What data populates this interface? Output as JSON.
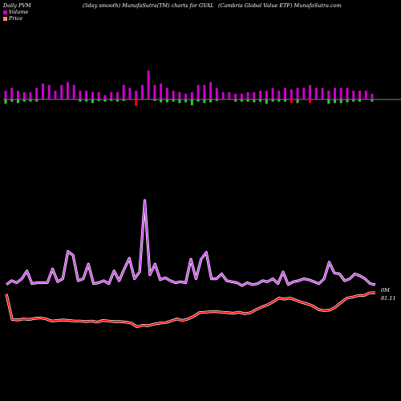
{
  "header": {
    "left": "Daily PVM",
    "mid": "(5day smooth) MunafaSutra(TM) charts for GVAL",
    "right": "(Cambria  Global Value   ETF) MunafaSutra.com"
  },
  "legend": [
    {
      "label": "Volume",
      "color": "#cc00cc"
    },
    {
      "label": "Price",
      "color": "#ff8c69"
    }
  ],
  "end_labels": {
    "volume": "0M",
    "price": "81.11"
  },
  "colors": {
    "volume_up": "#cc00cc",
    "volume_down": "#33cc33",
    "volume_red": "#ff0000",
    "volume_line": "#cc44ee",
    "price_line": "#ff0000"
  },
  "chart_data": {
    "type": "bar",
    "volume_bars": [
      {
        "up": 0.6,
        "down": 0.6
      },
      {
        "up": 0.8,
        "down": 0.3
      },
      {
        "up": 0.6,
        "down": 0.5
      },
      {
        "up": 0.5,
        "down": 0.3
      },
      {
        "up": 0.5,
        "down": 0.3
      },
      {
        "up": 0.8,
        "down": 0.3
      },
      {
        "up": 1.1,
        "down": 0.0
      },
      {
        "up": 1.0,
        "down": 0.0
      },
      {
        "up": 0.6,
        "down": 0.0
      },
      {
        "up": 1.0,
        "down": 0.0
      },
      {
        "up": 1.2,
        "down": 0.0
      },
      {
        "up": 1.0,
        "down": 0.0
      },
      {
        "up": 0.6,
        "down": 0.3
      },
      {
        "up": 0.6,
        "down": 0.3
      },
      {
        "up": 0.5,
        "down": 0.5
      },
      {
        "up": 0.5,
        "down": 0.2
      },
      {
        "up": 0.3,
        "down": 0.3
      },
      {
        "up": 0.5,
        "down": 0.2
      },
      {
        "up": 0.5,
        "down": 0.3
      },
      {
        "up": 1.0,
        "down": 0.2
      },
      {
        "up": 0.8,
        "down": 0.0
      },
      {
        "up": 0.6,
        "down": 0.9,
        "red": true
      },
      {
        "up": 1.0,
        "down": 0.0
      },
      {
        "up": 2.0,
        "down": 0.0
      },
      {
        "up": 1.0,
        "down": 0.2
      },
      {
        "up": 1.1,
        "down": 0.4
      },
      {
        "up": 0.8,
        "down": 0.4
      },
      {
        "up": 0.6,
        "down": 0.3
      },
      {
        "up": 0.5,
        "down": 0.5
      },
      {
        "up": 0.4,
        "down": 0.4
      },
      {
        "up": 0.5,
        "down": 0.8
      },
      {
        "up": 1.0,
        "down": 0.3
      },
      {
        "up": 1.0,
        "down": 0.5
      },
      {
        "up": 1.2,
        "down": 0.4
      },
      {
        "up": 0.8,
        "down": 0.2
      },
      {
        "up": 0.5,
        "down": 0.0
      },
      {
        "up": 0.5,
        "down": 0.0
      },
      {
        "up": 0.4,
        "down": 0.3
      },
      {
        "up": 0.4,
        "down": 0.3
      },
      {
        "up": 0.5,
        "down": 0.3
      },
      {
        "up": 0.5,
        "down": 0.4
      },
      {
        "up": 0.6,
        "down": 0.3
      },
      {
        "up": 0.6,
        "down": 0.6
      },
      {
        "up": 0.8,
        "down": 0.3
      },
      {
        "up": 0.6,
        "down": 0.3
      },
      {
        "up": 0.8,
        "down": 0.3
      },
      {
        "up": 0.7,
        "down": 0.5,
        "red": true
      },
      {
        "up": 0.8,
        "down": 0.5
      },
      {
        "up": 0.8,
        "down": 0.0
      },
      {
        "up": 1.0,
        "down": 0.5,
        "red": true
      },
      {
        "up": 0.8,
        "down": 0.0
      },
      {
        "up": 0.8,
        "down": 0.0
      },
      {
        "up": 0.6,
        "down": 0.6
      },
      {
        "up": 0.8,
        "down": 0.5
      },
      {
        "up": 0.8,
        "down": 0.5
      },
      {
        "up": 0.8,
        "down": 0.4
      },
      {
        "up": 0.6,
        "down": 0.3
      },
      {
        "up": 0.6,
        "down": 0.3
      },
      {
        "up": 0.6,
        "down": 0.0
      },
      {
        "up": 0.4,
        "down": 0.3
      }
    ],
    "volume_line": [
      14,
      18,
      16,
      20,
      28,
      15,
      16,
      16,
      16,
      30,
      17,
      20,
      48,
      44,
      18,
      20,
      35,
      15,
      16,
      18,
      15,
      28,
      18,
      30,
      41,
      20,
      27,
      100,
      24,
      35,
      19,
      21,
      18,
      16,
      17,
      16,
      40,
      20,
      40,
      47,
      20,
      20,
      25,
      18,
      17,
      16,
      13,
      16,
      14,
      15,
      18,
      17,
      20,
      15,
      27,
      14,
      17,
      18,
      20,
      19,
      17,
      15,
      20,
      37,
      26,
      25,
      18,
      20,
      25,
      23,
      20,
      15,
      14
    ],
    "price_line": [
      81.0,
      78.55,
      78.5,
      78.6,
      78.55,
      78.65,
      78.7,
      78.6,
      78.4,
      78.45,
      78.5,
      78.45,
      78.4,
      78.4,
      78.35,
      78.4,
      78.3,
      78.45,
      78.4,
      78.35,
      78.35,
      78.3,
      78.2,
      77.85,
      78.0,
      77.95,
      78.1,
      78.2,
      78.25,
      78.4,
      78.6,
      78.45,
      78.6,
      78.85,
      79.2,
      79.25,
      79.3,
      79.3,
      79.25,
      79.2,
      79.15,
      79.25,
      79.1,
      79.2,
      79.5,
      79.75,
      79.95,
      80.25,
      80.6,
      80.5,
      80.6,
      80.4,
      80.2,
      80.05,
      79.85,
      79.5,
      79.4,
      79.45,
      79.75,
      80.2,
      80.6,
      80.7,
      80.85,
      80.85,
      81.1,
      81.11
    ],
    "ylim_volume": [
      0,
      100
    ],
    "ylim_price": [
      77.5,
      81.5
    ]
  }
}
